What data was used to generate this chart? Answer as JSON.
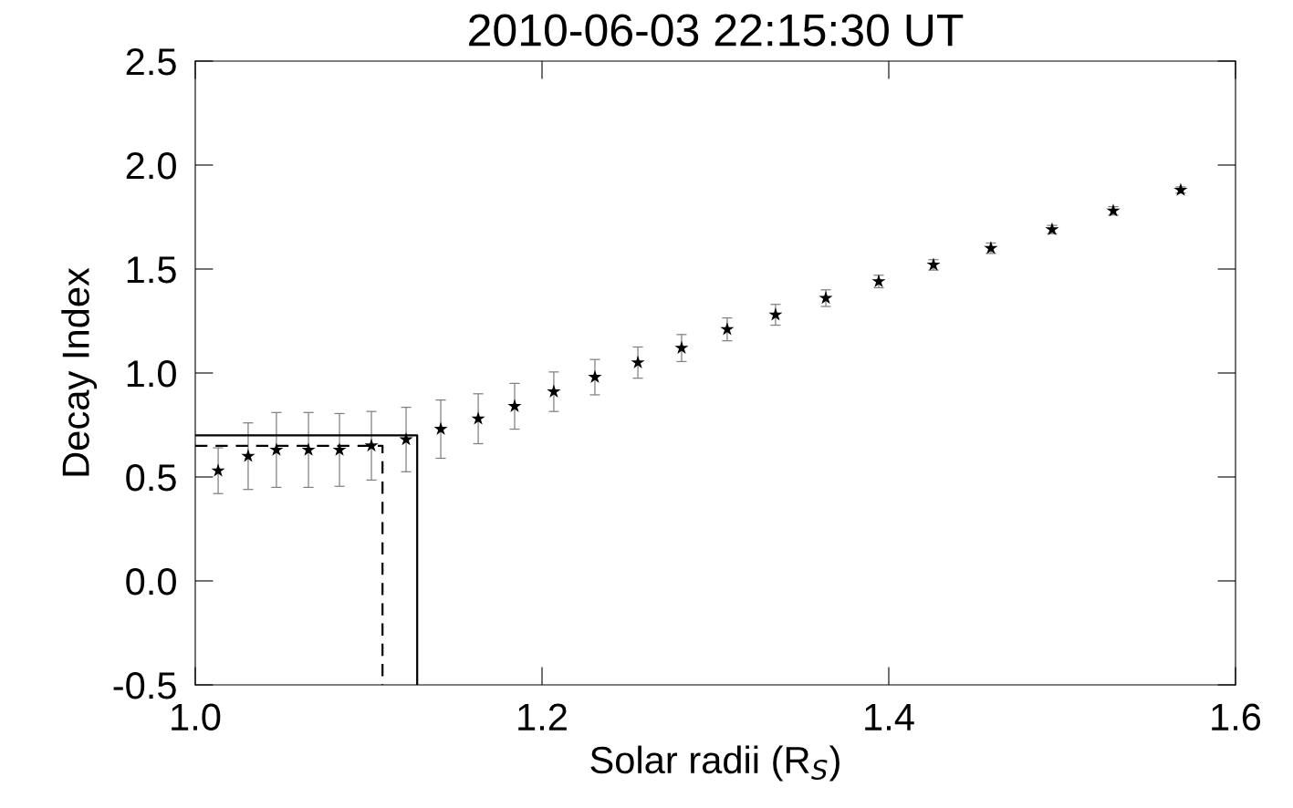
{
  "chart_data": {
    "type": "scatter",
    "title": "2010-06-03 22:15:30 UT",
    "xlabel": "Solar radii (R$_{S}$)",
    "ylabel": "Decay Index",
    "xlim": [
      1.0,
      1.6
    ],
    "xticks": [
      {
        "value": 1.0,
        "label": "1.0"
      },
      1.2,
      1.4,
      1.6
    ],
    "ylim": [
      -0.5,
      2.5
    ],
    "yticks": [
      -0.5,
      {
        "value": 0.0,
        "label": "0.0"
      },
      0.5,
      {
        "value": 1.0,
        "label": "1.0"
      },
      1.5,
      {
        "value": 2.0,
        "label": "2.0"
      },
      2.5
    ],
    "grid": false,
    "legend": false,
    "marker": "star",
    "series": [
      {
        "type": "scatter",
        "color": "#000000",
        "x": [
          1.0132,
          1.0305,
          1.0468,
          1.0653,
          1.0832,
          1.1016,
          1.1216,
          1.1416,
          1.1632,
          1.1842,
          1.2068,
          1.2305,
          1.2553,
          1.2805,
          1.3068,
          1.3347,
          1.3637,
          1.3942,
          1.4258,
          1.4589,
          1.4942,
          1.5295,
          1.5684
        ],
        "values": [
          0.53,
          0.6,
          0.63,
          0.63,
          0.63,
          0.65,
          0.68,
          0.73,
          0.78,
          0.84,
          0.91,
          0.98,
          1.05,
          1.12,
          1.21,
          1.28,
          1.36,
          1.44,
          1.52,
          1.6,
          1.69,
          1.78,
          1.88
        ],
        "errors": [
          0.11,
          0.16,
          0.18,
          0.18,
          0.175,
          0.165,
          0.155,
          0.14,
          0.12,
          0.11,
          0.095,
          0.085,
          0.075,
          0.065,
          0.055,
          0.05,
          0.04,
          0.03,
          0.025,
          0.025,
          0.02,
          0.02,
          0.015
        ]
      },
      {
        "type": "line",
        "color": "#000000",
        "line_style": "solid",
        "marker": "none",
        "x": [
          1.0,
          1.128,
          1.128
        ],
        "values": [
          0.7,
          0.7,
          -0.5
        ]
      },
      {
        "type": "line",
        "color": "#000000",
        "line_style": "dashed",
        "marker": "none",
        "x": [
          1.0,
          1.108,
          1.108
        ],
        "values": [
          0.65,
          0.65,
          -0.5
        ]
      }
    ]
  }
}
